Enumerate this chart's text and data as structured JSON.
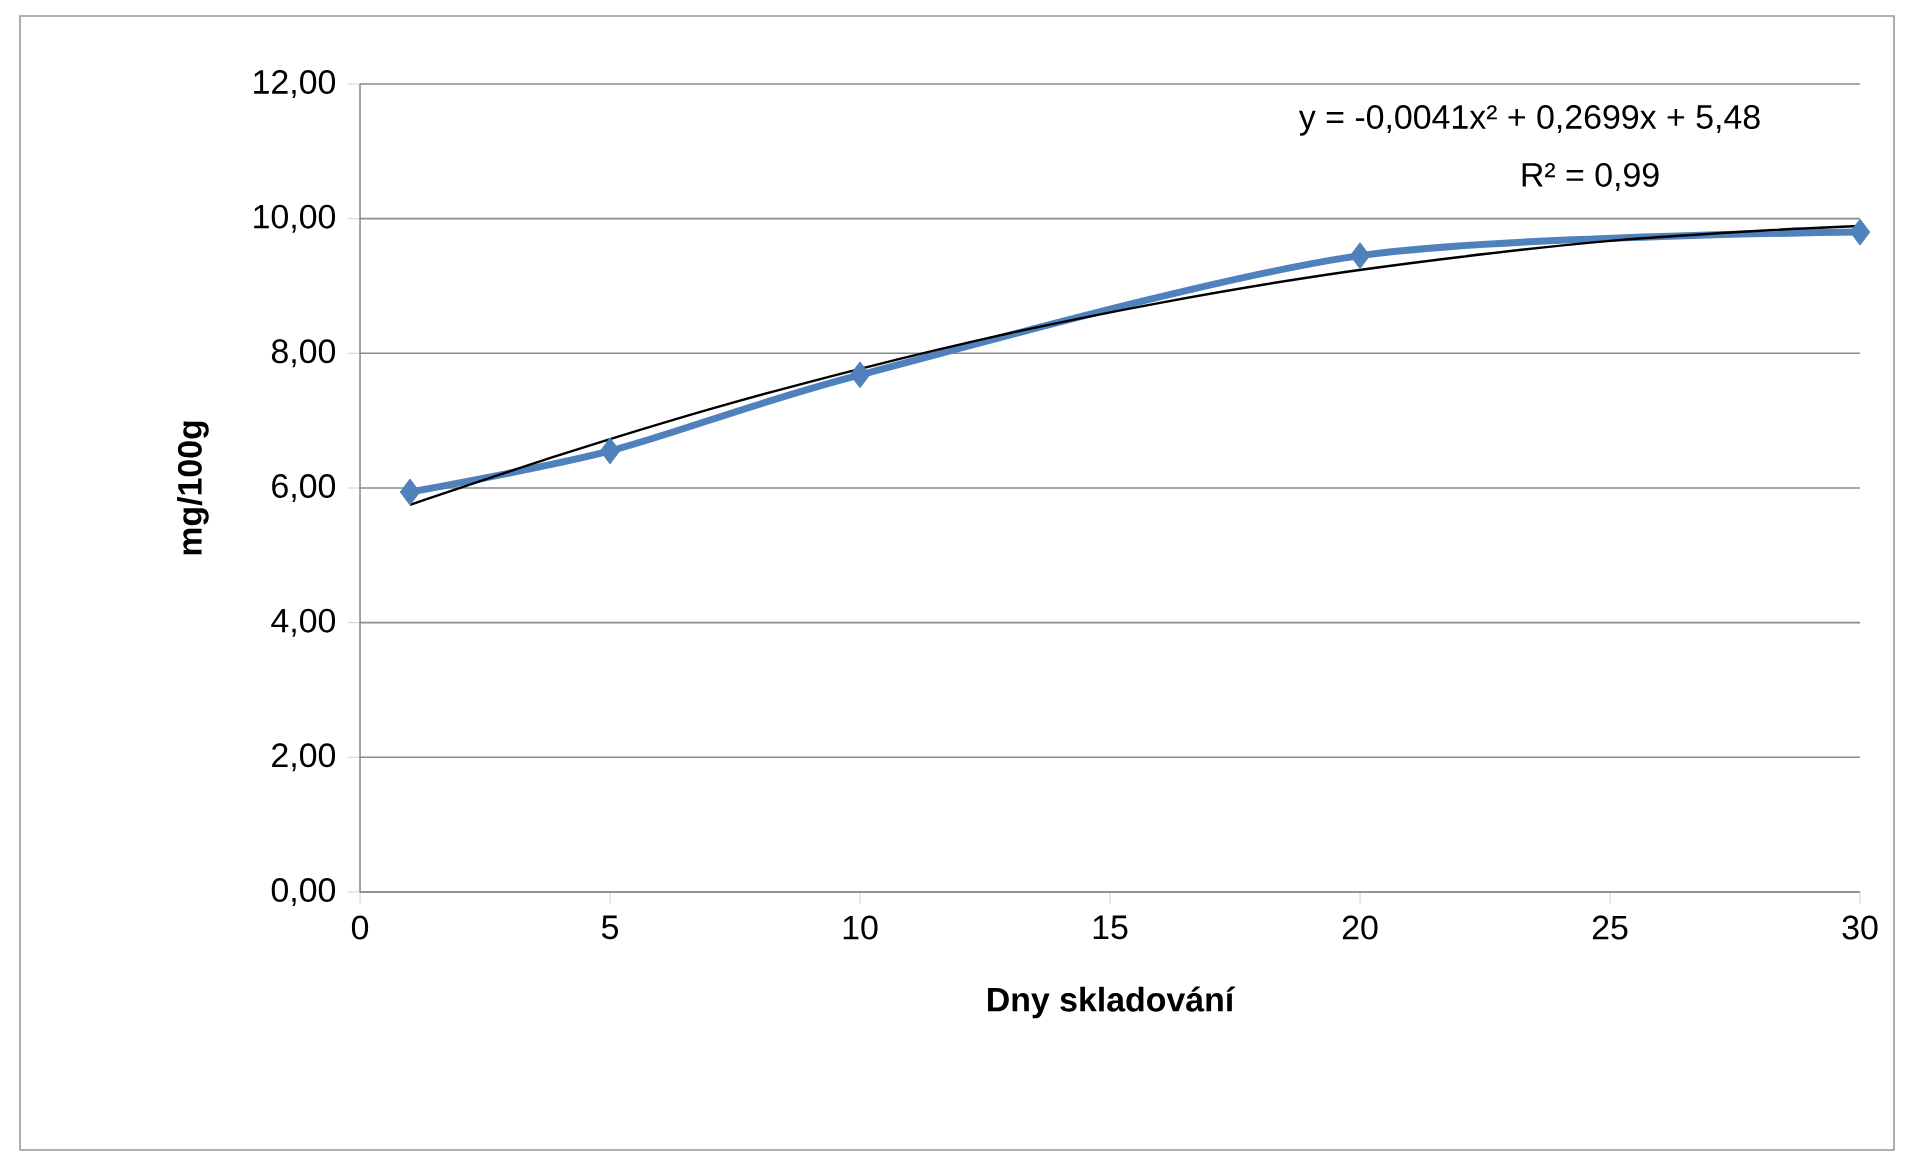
{
  "chart_data": {
    "type": "line",
    "xlabel": "Dny skladování",
    "ylabel": "mg/100g",
    "annotations": [
      "y = -0,0041x² + 0,2699x + 5,48",
      "R² = 0,99"
    ],
    "xlim": [
      0,
      30
    ],
    "ylim": [
      0,
      12
    ],
    "xticks": [
      0,
      5,
      10,
      15,
      20,
      25,
      30
    ],
    "yticks": [
      {
        "value": 0,
        "label": "0,00"
      },
      {
        "value": 2,
        "label": "2,00"
      },
      {
        "value": 4,
        "label": "4,00"
      },
      {
        "value": 6,
        "label": "6,00"
      },
      {
        "value": 8,
        "label": "8,00"
      },
      {
        "value": 10,
        "label": "10,00"
      },
      {
        "value": 12,
        "label": "12,00"
      }
    ],
    "grid": "y",
    "series": [
      {
        "color": "#4f81bd",
        "marker": "diamond",
        "x": [
          1,
          5,
          10,
          20,
          30
        ],
        "values": [
          5.94,
          6.55,
          7.68,
          9.45,
          9.8
        ]
      },
      {
        "type": "line",
        "color": "#000000",
        "marker": "none",
        "x": [
          1,
          4,
          7,
          10,
          13,
          16,
          19,
          22,
          25,
          28,
          30
        ],
        "values": [
          5.75,
          6.49,
          7.17,
          7.77,
          8.3,
          8.75,
          9.13,
          9.43,
          9.67,
          9.82,
          9.89
        ]
      }
    ]
  }
}
